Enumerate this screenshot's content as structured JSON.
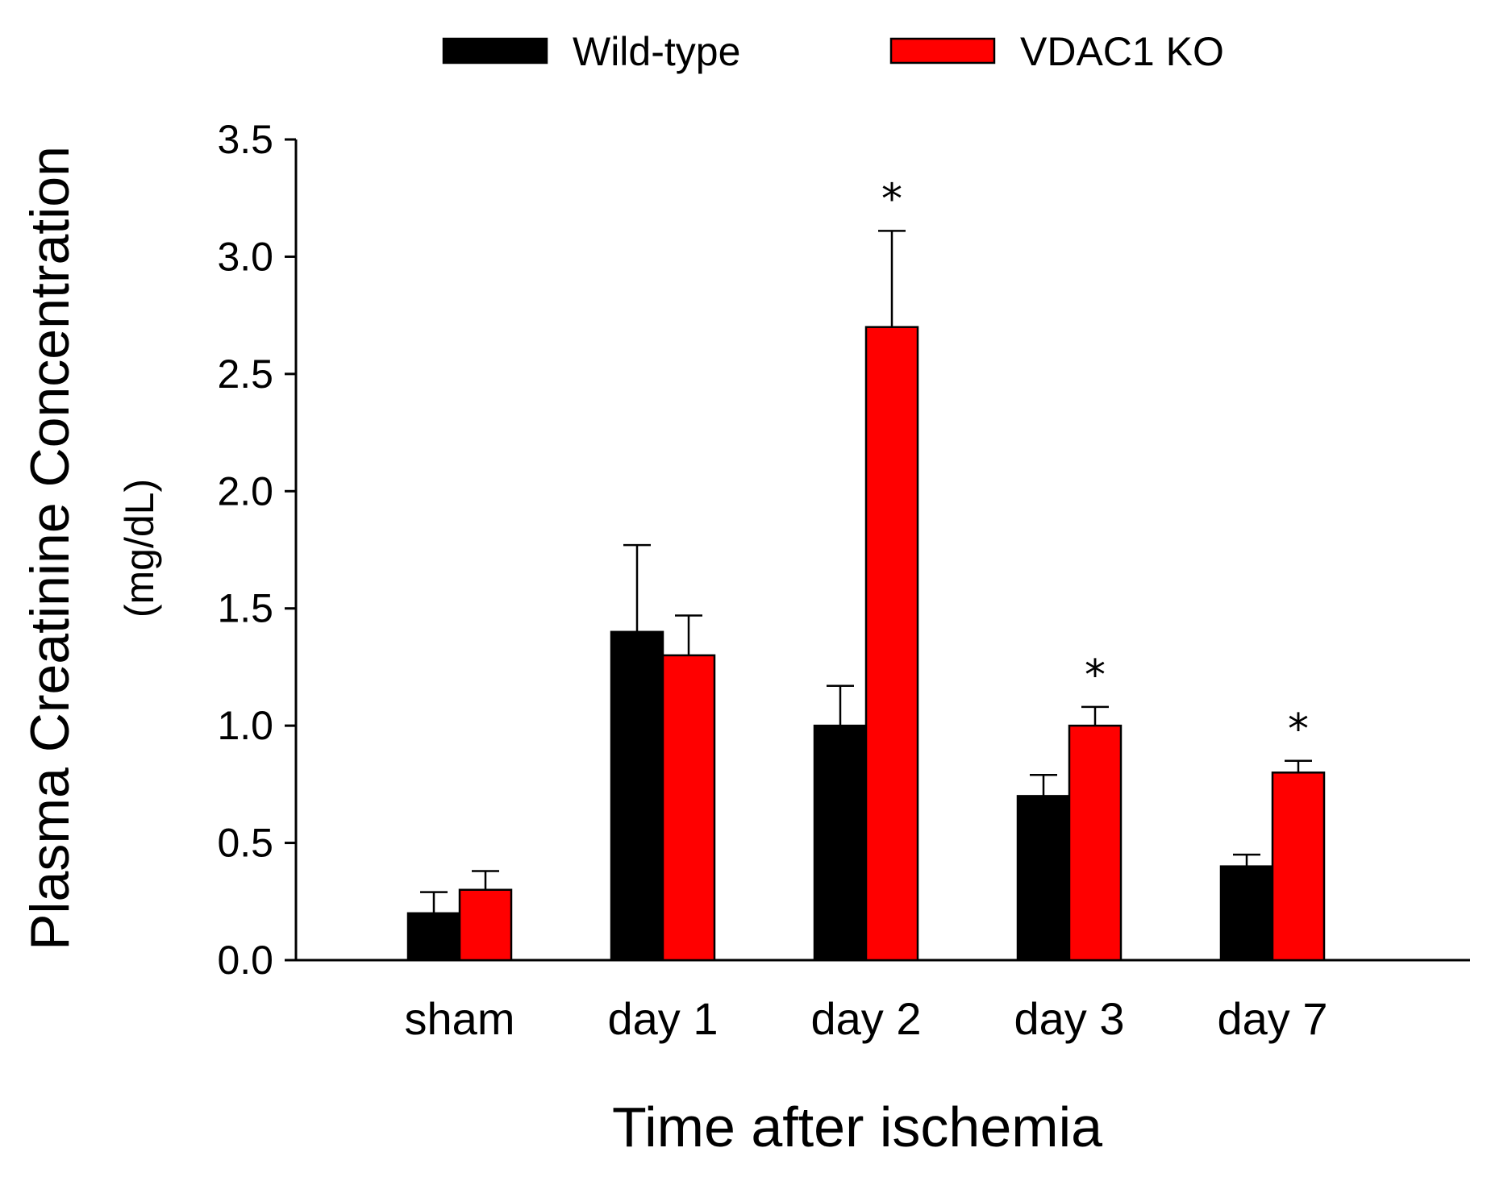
{
  "chart_data": {
    "type": "bar",
    "title": "",
    "xlabel": "Time after ischemia",
    "ylabel": "Plasma Creatinine Concentration",
    "ylabel_unit": "(mg/dL)",
    "ylim": [
      0,
      3.5
    ],
    "yticks": [
      0.0,
      0.5,
      1.0,
      1.5,
      2.0,
      2.5,
      3.0,
      3.5
    ],
    "ytick_labels": [
      "0.0",
      "0.5",
      "1.0",
      "1.5",
      "2.0",
      "2.5",
      "3.0",
      "3.5"
    ],
    "categories": [
      "sham",
      "day 1",
      "day 2",
      "day 3",
      "day 7"
    ],
    "legend_position": "top",
    "series": [
      {
        "name": "Wild-type",
        "color": "#000000",
        "values": [
          0.2,
          1.4,
          1.0,
          0.7,
          0.4
        ],
        "errors": [
          0.09,
          0.37,
          0.17,
          0.09,
          0.05
        ],
        "significance": [
          "",
          "",
          "",
          "",
          ""
        ]
      },
      {
        "name": "VDAC1 KO",
        "color": "#ff0000",
        "values": [
          0.3,
          1.3,
          2.7,
          1.0,
          0.8
        ],
        "errors": [
          0.08,
          0.17,
          0.41,
          0.08,
          0.05
        ],
        "significance": [
          "",
          "",
          "*",
          "*",
          "*"
        ]
      }
    ]
  }
}
